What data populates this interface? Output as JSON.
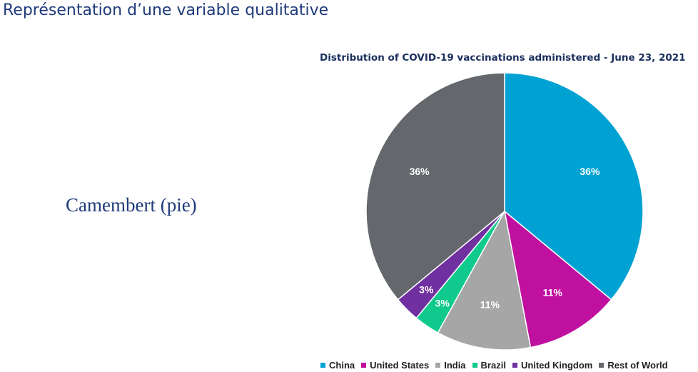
{
  "slide": {
    "title": "Représentation d’une variable qualitative",
    "caption": "Camembert (pie)"
  },
  "chart_data": {
    "type": "pie",
    "title": "Distribution of COVID-19 vaccinations administered - June 23, 2021",
    "slices": [
      {
        "label": "China",
        "value": 36,
        "display": "36%",
        "color": "#00a2d3"
      },
      {
        "label": "United States",
        "value": 11,
        "display": "11%",
        "color": "#c010a0"
      },
      {
        "label": "India",
        "value": 11,
        "display": "11%",
        "color": "#a6a6a6"
      },
      {
        "label": "Brazil",
        "value": 3,
        "display": "3%",
        "color": "#10c98c"
      },
      {
        "label": "United Kingdom",
        "value": 3,
        "display": "3%",
        "color": "#7030a0"
      },
      {
        "label": "Rest of World",
        "value": 36,
        "display": "36%",
        "color": "#64676b"
      }
    ],
    "legend_position": "bottom",
    "start_angle": "12 o'clock, clockwise"
  }
}
